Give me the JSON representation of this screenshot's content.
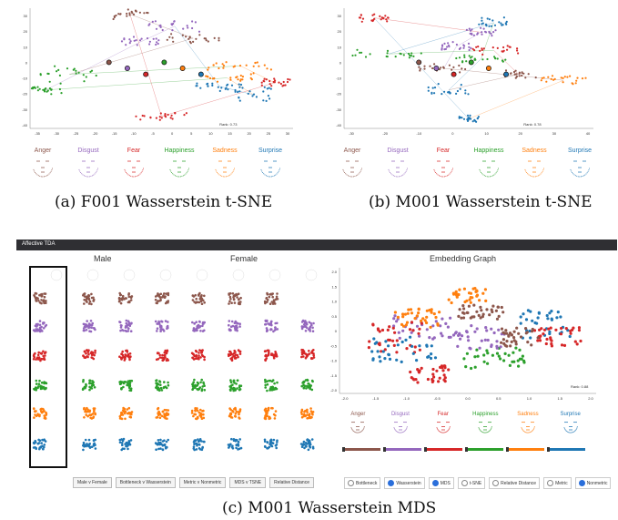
{
  "captions": {
    "a": "(a)  F001 Wasserstein t-SNE",
    "b": "(b)  M001 Wasserstein t-SNE",
    "c": "(c)  M001 Wasserstein MDS"
  },
  "emotions": [
    "Anger",
    "Disgust",
    "Fear",
    "Happiness",
    "Sadness",
    "Surprise"
  ],
  "colors": {
    "Anger": "#8c564b",
    "Disgust": "#9467bd",
    "Fear": "#d62728",
    "Happiness": "#2ca02c",
    "Sadness": "#ff7f0e",
    "Surprise": "#1f77b4"
  },
  "plot_a": {
    "y_ticks": [
      "30",
      "20",
      "10",
      "0",
      "-10",
      "-20",
      "-30",
      "-40"
    ],
    "x_ticks": [
      "-35",
      "-30",
      "-25",
      "-20",
      "-15",
      "-10",
      "-5",
      "0",
      "5",
      "10",
      "15",
      "20",
      "25",
      "30"
    ],
    "rank": "Rank: 0.73"
  },
  "plot_b": {
    "y_ticks": [
      "30",
      "20",
      "10",
      "0",
      "-10",
      "-20",
      "-30",
      "-40"
    ],
    "x_ticks": [
      "-30",
      "-20",
      "-10",
      "0",
      "10",
      "20",
      "30",
      "40"
    ],
    "rank": "Rank: 0.78"
  },
  "app": {
    "title": "Affective TDA",
    "male_label": "Male",
    "female_label": "Female",
    "embedding_title": "Embedding Graph",
    "rank": "Rank: 0.88",
    "emb_y_ticks": [
      "2.0",
      "1.5",
      "1.0",
      "0.5",
      "0",
      "-0.5",
      "-1.0",
      "-1.5",
      "-2.0"
    ],
    "emb_x_ticks": [
      "-2.0",
      "-1.5",
      "-1.0",
      "-0.5",
      "0.0",
      "0.5",
      "1.0",
      "1.5",
      "2.0"
    ],
    "slider_values": [
      "0",
      "0",
      "0",
      "0",
      "0",
      "0"
    ],
    "buttons": [
      "Male v Female",
      "Bottleneck v Wasserstein",
      "Metric v Nonmetric",
      "MDS v TSNE",
      "Relative Distance"
    ],
    "radios": [
      {
        "label": "Bottleneck",
        "on": false
      },
      {
        "label": "Wasserstein",
        "on": true
      },
      {
        "label": "MDS",
        "on": true
      },
      {
        "label": "t-SNE",
        "on": false
      },
      {
        "label": "Relative Distance",
        "on": false
      },
      {
        "label": "Metric",
        "on": false
      },
      {
        "label": "Nonmetric",
        "on": true
      }
    ]
  }
}
